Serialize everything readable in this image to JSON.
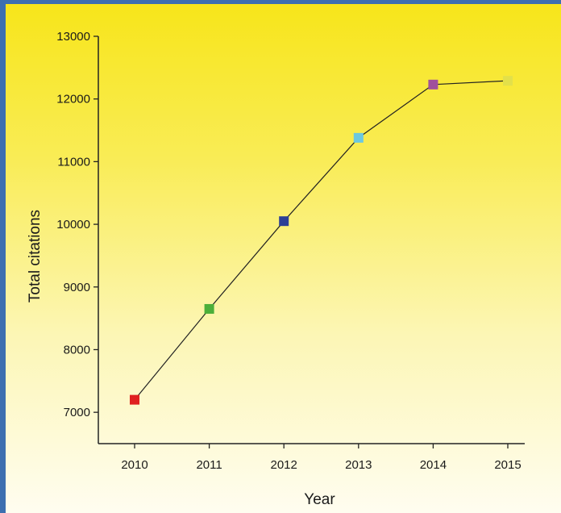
{
  "chart_data": {
    "type": "line",
    "title": "",
    "xlabel": "Year",
    "ylabel": "Total citations",
    "x": [
      "2010",
      "2011",
      "2012",
      "2013",
      "2014",
      "2015"
    ],
    "series": [
      {
        "values": [
          7200,
          8650,
          10050,
          11380,
          12230,
          12290
        ],
        "line_color": "#222222",
        "marker_colors": [
          "#e02020",
          "#4caf3a",
          "#2b3f96",
          "#6cc8e0",
          "#a0509c",
          "#e3e04a"
        ]
      }
    ],
    "ylim": [
      6500,
      13000
    ],
    "yticks": [
      7000,
      8000,
      9000,
      10000,
      11000,
      12000,
      13000
    ],
    "grid": false,
    "legend": "none"
  }
}
